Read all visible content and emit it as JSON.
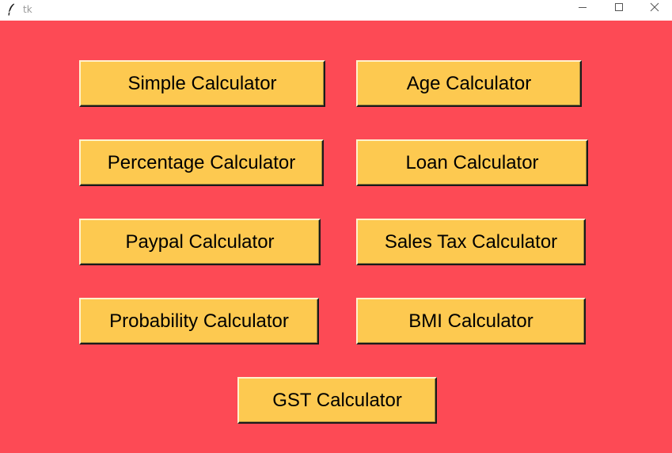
{
  "window": {
    "title": "tk",
    "controls": {
      "minimize_icon": "minimize-icon",
      "maximize_icon": "maximize-icon",
      "close_icon": "close-icon"
    }
  },
  "colors": {
    "background": "#fd4a55",
    "button": "#fdc950",
    "button_text": "#000000"
  },
  "buttons": {
    "simple": "Simple Calculator",
    "age": "Age Calculator",
    "percentage": "Percentage Calculator",
    "loan": "Loan Calculator",
    "paypal": "Paypal Calculator",
    "sales_tax": "Sales Tax Calculator",
    "probability": "Probability Calculator",
    "bmi": "BMI Calculator",
    "gst": "GST Calculator"
  }
}
